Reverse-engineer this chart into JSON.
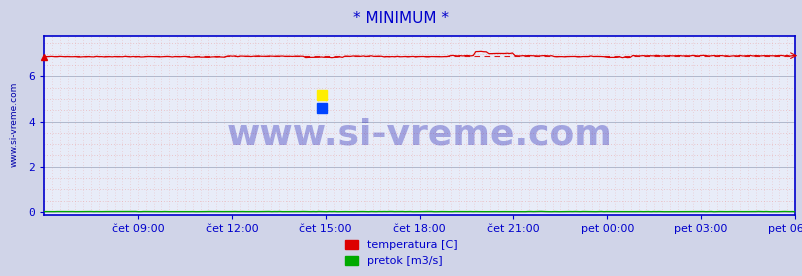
{
  "title": "* MINIMUM *",
  "title_color": "#0000cc",
  "title_fontsize": 11,
  "bg_color": "#d0d4e8",
  "plot_bg_color": "#e8ecf8",
  "grid_major_color": "#b0b8cc",
  "grid_minor_color_h": "#e8a0a0",
  "grid_minor_color_v": "#e8a0a0",
  "border_color": "#0000cc",
  "ylabel_text": "www.si-vreme.com",
  "ylabel_color": "#0000aa",
  "xtick_labels": [
    "čet 09:00",
    "čet 12:00",
    "čet 15:00",
    "čet 18:00",
    "čet 21:00",
    "pet 00:00",
    "pet 03:00",
    "pet 06:00"
  ],
  "ytick_values": [
    0,
    2,
    4,
    6
  ],
  "ymax": 7.8,
  "ymin": -0.15,
  "temp_line_color": "#dd0000",
  "flow_line_color": "#00aa00",
  "legend_temp_label": "temperatura [C]",
  "legend_flow_label": "pretok [m3/s]",
  "legend_fontsize": 8,
  "tick_label_color": "#0000cc",
  "tick_fontsize": 8,
  "watermark": "www.si-vreme.com",
  "watermark_color": "#0000aa",
  "watermark_fontsize": 26,
  "watermark_alpha": 0.3,
  "avg_line_value": 6.93,
  "avg_line_color": "#dd0000"
}
